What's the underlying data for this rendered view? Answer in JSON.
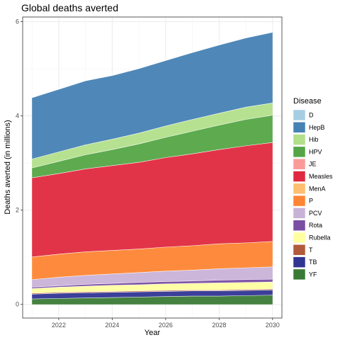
{
  "chart_data": {
    "type": "area",
    "stacked": true,
    "title": "Global deaths averted",
    "xlabel": "Year",
    "ylabel": "Deaths averted (in millions)",
    "xlim": [
      2020.65,
      2030.35
    ],
    "ylim": [
      -0.29,
      6.1
    ],
    "x_ticks": [
      2022,
      2024,
      2026,
      2028,
      2030
    ],
    "y_ticks": [
      0,
      2,
      4,
      6
    ],
    "grid": true,
    "legend_position": "right",
    "legend_title": "Disease",
    "x": [
      2021,
      2022,
      2023,
      2024,
      2025,
      2026,
      2027,
      2028,
      2029,
      2030
    ],
    "series": [
      {
        "name": "D",
        "color": "#a6cee3",
        "values": [
          0,
          0,
          0,
          0,
          0,
          0,
          0,
          0,
          0,
          0
        ]
      },
      {
        "name": "HepB",
        "color": "#4682b4",
        "values": [
          1.3,
          1.33,
          1.36,
          1.35,
          1.37,
          1.39,
          1.42,
          1.45,
          1.47,
          1.5
        ]
      },
      {
        "name": "Hib",
        "color": "#b2df8a",
        "values": [
          0.19,
          0.2,
          0.21,
          0.22,
          0.23,
          0.24,
          0.25,
          0.25,
          0.26,
          0.26
        ]
      },
      {
        "name": "HPV",
        "color": "#55a546",
        "values": [
          0.21,
          0.26,
          0.3,
          0.34,
          0.39,
          0.43,
          0.48,
          0.52,
          0.56,
          0.58
        ]
      },
      {
        "name": "JE",
        "color": "#fb9a99",
        "values": [
          0,
          0,
          0,
          0,
          0,
          0,
          0,
          0,
          0,
          0
        ]
      },
      {
        "name": "Measles",
        "color": "#e0293f",
        "values": [
          1.68,
          1.71,
          1.76,
          1.8,
          1.84,
          1.9,
          1.95,
          2.0,
          2.06,
          2.1
        ]
      },
      {
        "name": "MenA",
        "color": "#fdbf6f",
        "values": [
          0,
          0,
          0,
          0,
          0,
          0,
          0,
          0,
          0,
          0
        ]
      },
      {
        "name": "P",
        "color": "#fe8533",
        "values": [
          0.48,
          0.49,
          0.5,
          0.5,
          0.5,
          0.51,
          0.52,
          0.53,
          0.53,
          0.54
        ]
      },
      {
        "name": "PCV",
        "color": "#c9b2d8",
        "values": [
          0.16,
          0.18,
          0.19,
          0.2,
          0.21,
          0.22,
          0.23,
          0.24,
          0.25,
          0.26
        ]
      },
      {
        "name": "Rota",
        "color": "#7a4ea3",
        "values": [
          0.03,
          0.03,
          0.04,
          0.04,
          0.05,
          0.05,
          0.05,
          0.06,
          0.06,
          0.06
        ]
      },
      {
        "name": "Rubella",
        "color": "#ffffa0",
        "values": [
          0.1,
          0.11,
          0.12,
          0.13,
          0.13,
          0.14,
          0.14,
          0.15,
          0.15,
          0.15
        ]
      },
      {
        "name": "T",
        "color": "#b15a3c",
        "values": [
          0.02,
          0.02,
          0.02,
          0.02,
          0.02,
          0.02,
          0.02,
          0.02,
          0.02,
          0.02
        ]
      },
      {
        "name": "TB",
        "color": "#303593",
        "values": [
          0.1,
          0.11,
          0.11,
          0.11,
          0.11,
          0.11,
          0.11,
          0.11,
          0.11,
          0.11
        ]
      },
      {
        "name": "YF",
        "color": "#3b7a36",
        "values": [
          0.12,
          0.13,
          0.14,
          0.15,
          0.16,
          0.17,
          0.18,
          0.18,
          0.19,
          0.2
        ]
      }
    ]
  }
}
